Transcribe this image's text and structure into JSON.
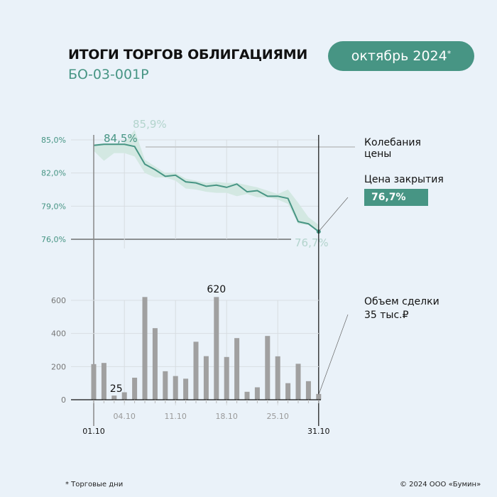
{
  "header": {
    "title": "ИТОГИ ТОРГОВ ОБЛИГАЦИЯМИ",
    "subtitle": "БО-03-001Р",
    "period": "октябрь 2024",
    "period_mark": "*"
  },
  "legend": {
    "range_label": "Колебания цены",
    "close_label": "Цена закрытия",
    "close_value": "76,7%",
    "volume_label": "Объем сделки",
    "volume_value": "35 тыс.₽"
  },
  "footer": {
    "note": "* Торговые дни",
    "copyright": "© 2024 ООО «Бумин»"
  },
  "colors": {
    "accent": "#479584",
    "band": "#d3e8e2",
    "bars": "#a0a0a0",
    "background": "#eaf2f9"
  },
  "chart_data": [
    {
      "type": "line",
      "ylim": [
        76,
        85
      ],
      "yticks": [
        "85,0%",
        "82,0%",
        "79,0%",
        "76,0%"
      ],
      "x": [
        "01.10",
        "02.10",
        "03.10",
        "04.10",
        "07.10",
        "08.10",
        "09.10",
        "10.10",
        "11.10",
        "14.10",
        "15.10",
        "16.10",
        "17.10",
        "18.10",
        "21.10",
        "22.10",
        "23.10",
        "24.10",
        "25.10",
        "28.10",
        "29.10",
        "30.10",
        "31.10"
      ],
      "close": [
        84.5,
        84.6,
        84.6,
        84.6,
        84.4,
        82.8,
        82.3,
        81.7,
        81.8,
        81.2,
        81.1,
        80.8,
        80.9,
        80.7,
        81.0,
        80.3,
        80.4,
        79.9,
        79.9,
        79.7,
        77.6,
        77.4,
        76.7
      ],
      "high": [
        84.6,
        84.7,
        84.7,
        84.7,
        85.9,
        83.2,
        82.6,
        82.0,
        82.0,
        81.5,
        81.3,
        81.1,
        81.2,
        81.1,
        81.1,
        80.9,
        80.7,
        80.4,
        80.1,
        80.5,
        79.3,
        78.0,
        77.3
      ],
      "low": [
        84.0,
        83.1,
        83.8,
        83.8,
        83.5,
        82.0,
        81.6,
        81.6,
        81.3,
        80.6,
        80.5,
        80.3,
        80.2,
        80.2,
        79.9,
        80.1,
        79.8,
        79.8,
        79.6,
        79.2,
        77.4,
        77.3,
        76.6
      ],
      "annotations": [
        {
          "text": "84,5%",
          "x": "01.10"
        },
        {
          "text": "85,9%",
          "x": "07.10"
        },
        {
          "text": "76,7%",
          "x": "31.10"
        }
      ]
    },
    {
      "type": "bar",
      "ylim": [
        0,
        700
      ],
      "yticks": [
        "600",
        "400",
        "200",
        "0"
      ],
      "xticks": [
        "04.10",
        "11.10",
        "18.10",
        "25.10"
      ],
      "xends": [
        "01.10",
        "31.10"
      ],
      "values": [
        215,
        222,
        25,
        45,
        133,
        620,
        432,
        172,
        143,
        127,
        350,
        263,
        620,
        258,
        372,
        48,
        75,
        385,
        262,
        100,
        217,
        112,
        35
      ],
      "annotations": [
        {
          "text": "25",
          "index": 2
        },
        {
          "text": "620",
          "index": 12
        }
      ]
    }
  ]
}
